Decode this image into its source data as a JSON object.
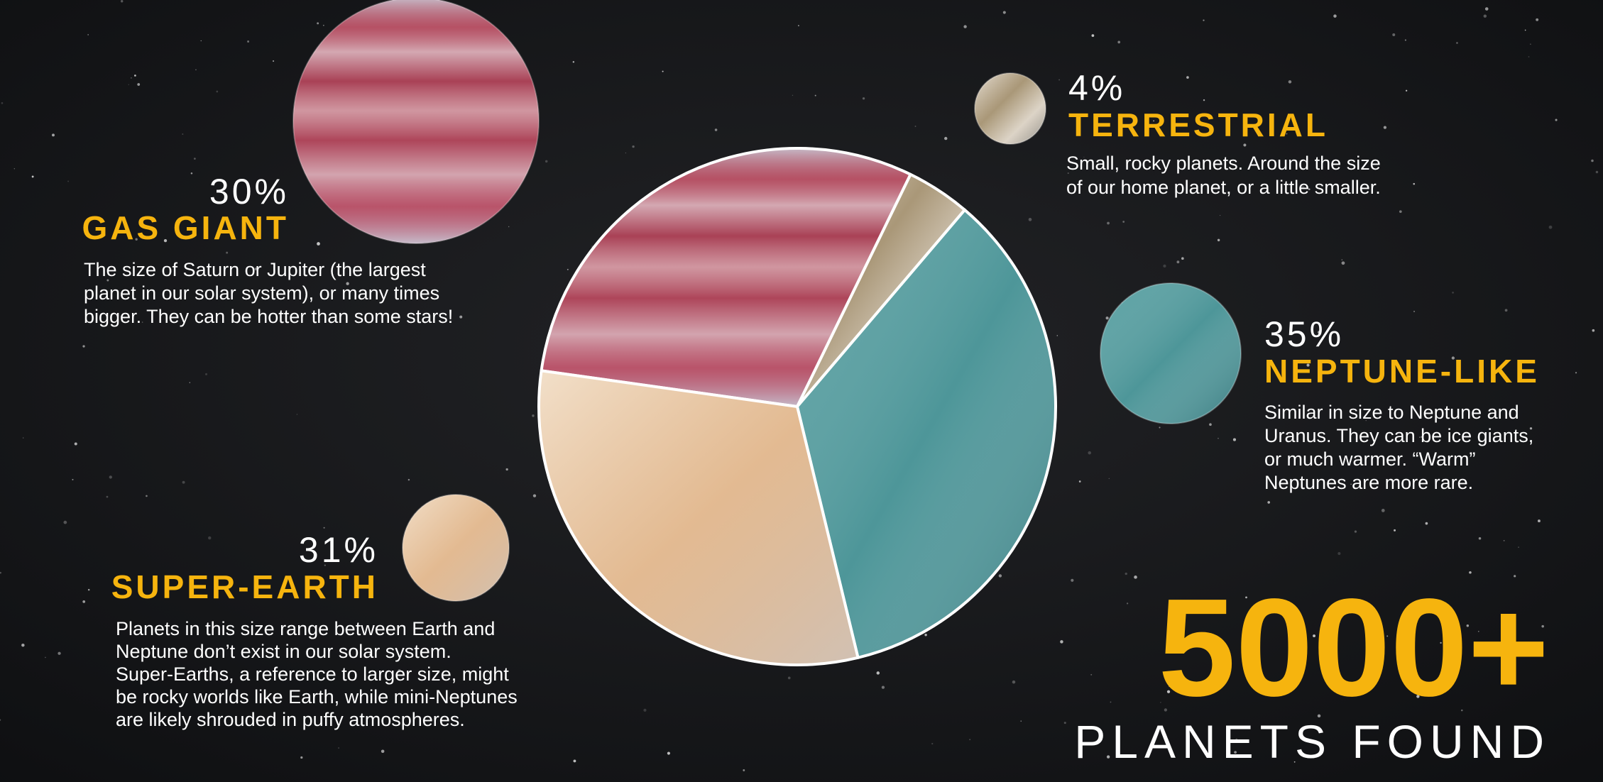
{
  "chart_data": {
    "type": "pie",
    "categories": [
      "GAS GIANT",
      "TERRESTRIAL",
      "NEPTUNE-LIKE",
      "SUPER-EARTH"
    ],
    "values": [
      30,
      4,
      35,
      31
    ],
    "value_labels": [
      "30%",
      "4%",
      "35%",
      "31%"
    ],
    "colors": [
      "#b9566a",
      "#c7b59b",
      "#3e8d90",
      "#e9caa5"
    ],
    "descriptions": [
      [
        "The size of Saturn or Jupiter (the largest",
        "planet in our solar system), or many times",
        "bigger. They can be hotter than some stars!"
      ],
      [
        "Small, rocky planets. Around the size",
        "of our home planet, or a little smaller."
      ],
      [
        "Similar in size to Neptune and",
        "Uranus. They can be ice giants,",
        "or much warmer. “Warm”",
        "Neptunes are more rare."
      ],
      [
        "Planets in this size range between Earth and",
        "Neptune don’t exist in our solar system.",
        "Super-Earths, a reference to larger size, might",
        "be rocky worlds like Earth, while mini-Neptunes",
        "are likely shrouded in puffy atmospheres."
      ]
    ],
    "annotation": "5000+",
    "subtitle": "PLANETS FOUND"
  }
}
